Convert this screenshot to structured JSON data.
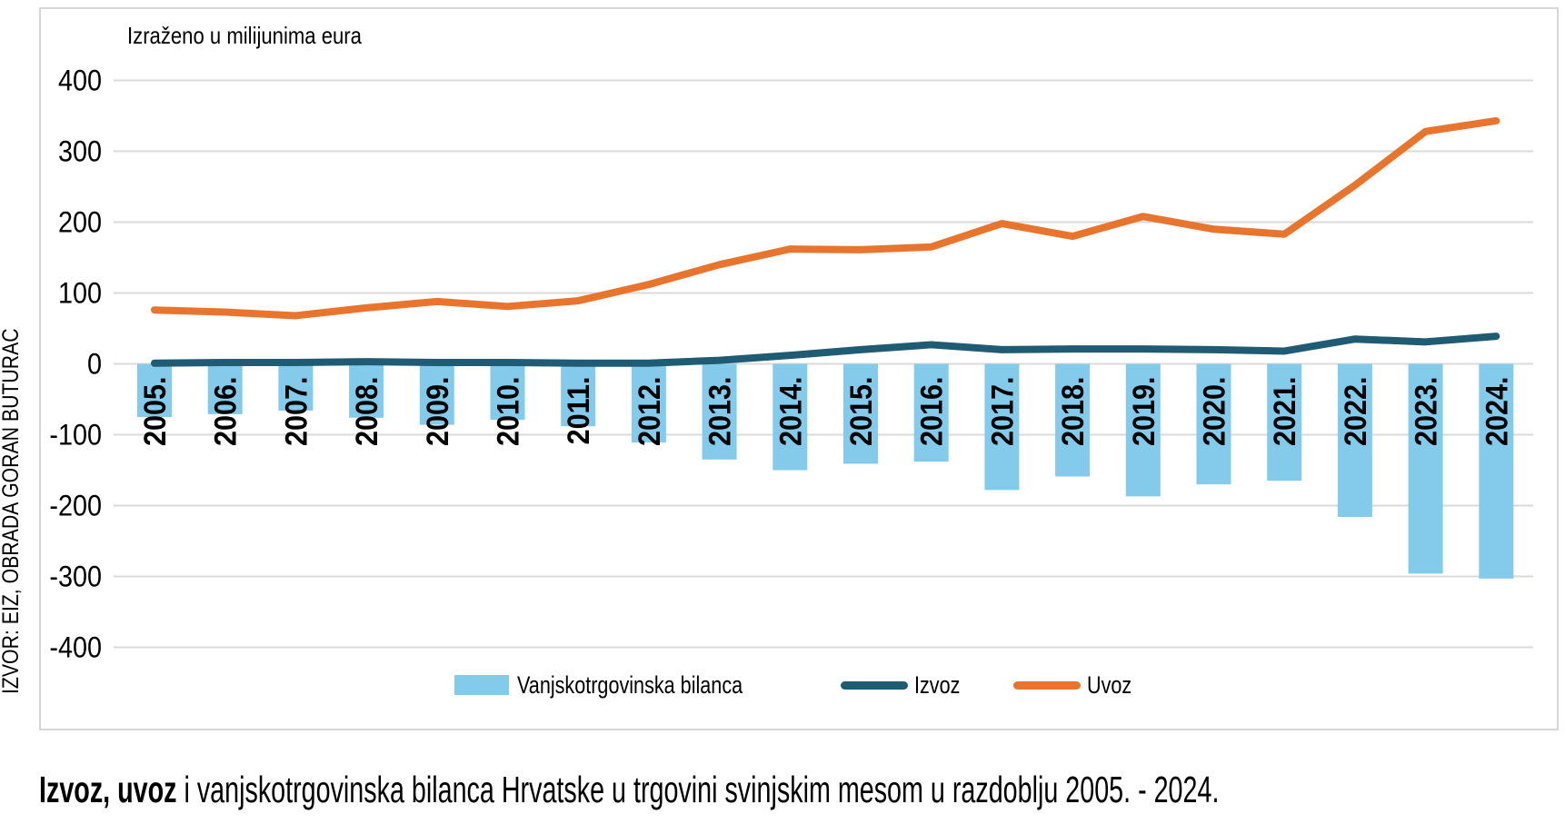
{
  "unit_label": "Izraženo u milijunima eura",
  "source_vertical": "IZVOR: EIZ, OBRADA GORAN BUTURAC",
  "caption": {
    "bold": "Izvoz, uvoz",
    "rest": " i vanjskotrgovinska bilanca Hrvatske u trgovini svinjskim mesom u razdoblju 2005. - 2024."
  },
  "colors": {
    "balance_bar": "#84cbeb",
    "izvoz_line": "#1f5b73",
    "uvoz_line": "#e8752e",
    "gridline": "#dadada",
    "frame_border": "#d6d6d6",
    "text": "#000000"
  },
  "legend": [
    {
      "label": "Vanjskotrgovinska bilanca",
      "type": "bar",
      "color": "#84cbeb"
    },
    {
      "label": "Izvoz",
      "type": "line",
      "color": "#1f5b73"
    },
    {
      "label": "Uvoz",
      "type": "line",
      "color": "#e8752e"
    }
  ],
  "chart_data": {
    "type": "combo",
    "title": "Izvoz, uvoz i vanjskotrgovinska bilanca Hrvatske u trgovini svinjskim mesom u razdoblju 2005. - 2024.",
    "unit": "Izraženo u milijunima eura",
    "categories": [
      "2005.",
      "2006.",
      "2007.",
      "2008.",
      "2009.",
      "2010.",
      "2011.",
      "2012.",
      "2013.",
      "2014.",
      "2015.",
      "2016.",
      "2017.",
      "2018.",
      "2019.",
      "2020.",
      "2021.",
      "2022.",
      "2023.",
      "2024."
    ],
    "series": [
      {
        "name": "Vanjskotrgovinska bilanca",
        "type": "bar",
        "color": "#84cbeb",
        "values": [
          -75,
          -71,
          -66,
          -76,
          -86,
          -79,
          -88,
          -111,
          -135,
          -150,
          -141,
          -138,
          -178,
          -159,
          -187,
          -170,
          -165,
          -216,
          -296,
          -303
        ]
      },
      {
        "name": "Izvoz",
        "type": "line",
        "color": "#1f5b73",
        "values": [
          1,
          2,
          2,
          3,
          2,
          2,
          1,
          1,
          5,
          12,
          20,
          27,
          20,
          21,
          21,
          20,
          18,
          35,
          31,
          39
        ]
      },
      {
        "name": "Uvoz",
        "type": "line",
        "color": "#e8752e",
        "values": [
          76,
          73,
          68,
          79,
          88,
          81,
          89,
          112,
          140,
          162,
          161,
          165,
          198,
          180,
          208,
          190,
          183,
          252,
          328,
          343
        ]
      }
    ],
    "ylim": [
      -400,
      400
    ],
    "yticks": [
      400,
      300,
      200,
      100,
      0,
      -100,
      -200,
      -300,
      -400
    ],
    "grid": true,
    "legend_position": "bottom"
  }
}
